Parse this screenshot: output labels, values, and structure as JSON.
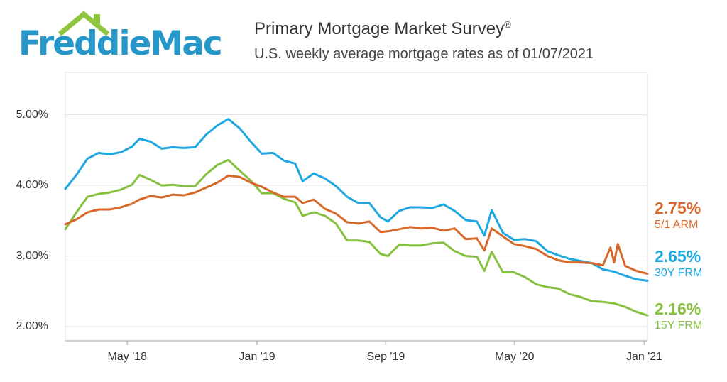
{
  "header": {
    "brand": "FreddieMac",
    "title": "Primary Mortgage Market Survey",
    "title_mark": "®",
    "subtitle": "U.S. weekly average mortgage rates as of 01/07/2021"
  },
  "colors": {
    "brand_blue": "#2597c8",
    "brand_green": "#8ec63f",
    "frm30": "#1ea7e1",
    "frm15": "#86c03f",
    "arm51": "#d8682a",
    "grid": "#e3e3e3",
    "axis": "#bdbdbd"
  },
  "chart_data": {
    "type": "line",
    "title": "Primary Mortgage Market Survey",
    "subtitle": "U.S. weekly average mortgage rates as of 01/07/2021",
    "x_range": [
      "2018-01-04",
      "2021-01-07"
    ],
    "ylim": [
      1.8,
      5.6
    ],
    "y_ticks": [
      2.0,
      3.0,
      4.0,
      5.0
    ],
    "y_tick_labels": [
      "2.00%",
      "3.00%",
      "4.00%",
      "5.00%"
    ],
    "x_ticks": [
      "2018-05-01",
      "2019-01-01",
      "2019-09-01",
      "2020-05-01",
      "2021-01-01"
    ],
    "x_tick_labels": [
      "May '18",
      "Jan '19",
      "Sep '19",
      "May '20",
      "Jan '21"
    ],
    "grid": "horizontal",
    "legend_placement": "right end labels",
    "series": [
      {
        "key": "frm30",
        "name": "30Y FRM",
        "end_label": "2.65%",
        "color": "#1ea7e1",
        "points": [
          [
            "2018-01-04",
            3.95
          ],
          [
            "2018-01-25",
            4.15
          ],
          [
            "2018-02-15",
            4.38
          ],
          [
            "2018-03-08",
            4.46
          ],
          [
            "2018-03-29",
            4.44
          ],
          [
            "2018-04-19",
            4.47
          ],
          [
            "2018-05-10",
            4.55
          ],
          [
            "2018-05-24",
            4.66
          ],
          [
            "2018-06-14",
            4.62
          ],
          [
            "2018-07-05",
            4.52
          ],
          [
            "2018-07-26",
            4.54
          ],
          [
            "2018-08-16",
            4.53
          ],
          [
            "2018-09-06",
            4.54
          ],
          [
            "2018-09-27",
            4.72
          ],
          [
            "2018-10-18",
            4.85
          ],
          [
            "2018-11-08",
            4.94
          ],
          [
            "2018-11-29",
            4.81
          ],
          [
            "2018-12-20",
            4.62
          ],
          [
            "2019-01-10",
            4.45
          ],
          [
            "2019-01-31",
            4.46
          ],
          [
            "2019-02-21",
            4.35
          ],
          [
            "2019-03-14",
            4.31
          ],
          [
            "2019-03-28",
            4.06
          ],
          [
            "2019-04-18",
            4.17
          ],
          [
            "2019-05-09",
            4.1
          ],
          [
            "2019-05-30",
            3.99
          ],
          [
            "2019-06-20",
            3.84
          ],
          [
            "2019-07-11",
            3.75
          ],
          [
            "2019-08-01",
            3.75
          ],
          [
            "2019-08-22",
            3.55
          ],
          [
            "2019-09-05",
            3.49
          ],
          [
            "2019-09-26",
            3.64
          ],
          [
            "2019-10-17",
            3.69
          ],
          [
            "2019-11-07",
            3.69
          ],
          [
            "2019-11-28",
            3.68
          ],
          [
            "2019-12-19",
            3.73
          ],
          [
            "2020-01-09",
            3.64
          ],
          [
            "2020-01-30",
            3.51
          ],
          [
            "2020-02-20",
            3.49
          ],
          [
            "2020-03-05",
            3.29
          ],
          [
            "2020-03-19",
            3.65
          ],
          [
            "2020-04-09",
            3.33
          ],
          [
            "2020-04-30",
            3.23
          ],
          [
            "2020-05-21",
            3.24
          ],
          [
            "2020-06-11",
            3.21
          ],
          [
            "2020-07-02",
            3.07
          ],
          [
            "2020-07-23",
            3.01
          ],
          [
            "2020-08-13",
            2.96
          ],
          [
            "2020-09-03",
            2.93
          ],
          [
            "2020-09-24",
            2.9
          ],
          [
            "2020-10-15",
            2.81
          ],
          [
            "2020-11-05",
            2.78
          ],
          [
            "2020-11-26",
            2.72
          ],
          [
            "2020-12-17",
            2.67
          ],
          [
            "2021-01-07",
            2.65
          ]
        ]
      },
      {
        "key": "frm15",
        "name": "15Y FRM",
        "end_label": "2.16%",
        "color": "#86c03f",
        "points": [
          [
            "2018-01-04",
            3.38
          ],
          [
            "2018-01-25",
            3.62
          ],
          [
            "2018-02-15",
            3.84
          ],
          [
            "2018-03-08",
            3.88
          ],
          [
            "2018-03-29",
            3.9
          ],
          [
            "2018-04-19",
            3.94
          ],
          [
            "2018-05-10",
            4.01
          ],
          [
            "2018-05-24",
            4.15
          ],
          [
            "2018-06-14",
            4.08
          ],
          [
            "2018-07-05",
            4.0
          ],
          [
            "2018-07-26",
            4.01
          ],
          [
            "2018-08-16",
            3.99
          ],
          [
            "2018-09-06",
            3.99
          ],
          [
            "2018-09-27",
            4.16
          ],
          [
            "2018-10-18",
            4.29
          ],
          [
            "2018-11-08",
            4.36
          ],
          [
            "2018-11-29",
            4.21
          ],
          [
            "2018-12-20",
            4.07
          ],
          [
            "2019-01-10",
            3.89
          ],
          [
            "2019-01-31",
            3.89
          ],
          [
            "2019-02-21",
            3.81
          ],
          [
            "2019-03-14",
            3.76
          ],
          [
            "2019-03-28",
            3.57
          ],
          [
            "2019-04-18",
            3.62
          ],
          [
            "2019-05-09",
            3.57
          ],
          [
            "2019-05-30",
            3.46
          ],
          [
            "2019-06-20",
            3.22
          ],
          [
            "2019-07-11",
            3.22
          ],
          [
            "2019-08-01",
            3.2
          ],
          [
            "2019-08-22",
            3.03
          ],
          [
            "2019-09-05",
            3.0
          ],
          [
            "2019-09-26",
            3.16
          ],
          [
            "2019-10-17",
            3.15
          ],
          [
            "2019-11-07",
            3.15
          ],
          [
            "2019-11-28",
            3.18
          ],
          [
            "2019-12-19",
            3.19
          ],
          [
            "2020-01-09",
            3.07
          ],
          [
            "2020-01-30",
            3.0
          ],
          [
            "2020-02-20",
            2.99
          ],
          [
            "2020-03-05",
            2.79
          ],
          [
            "2020-03-19",
            3.06
          ],
          [
            "2020-04-09",
            2.77
          ],
          [
            "2020-04-30",
            2.77
          ],
          [
            "2020-05-21",
            2.7
          ],
          [
            "2020-06-11",
            2.6
          ],
          [
            "2020-07-02",
            2.56
          ],
          [
            "2020-07-23",
            2.54
          ],
          [
            "2020-08-13",
            2.46
          ],
          [
            "2020-09-03",
            2.42
          ],
          [
            "2020-09-24",
            2.36
          ],
          [
            "2020-10-15",
            2.35
          ],
          [
            "2020-11-05",
            2.33
          ],
          [
            "2020-11-26",
            2.28
          ],
          [
            "2020-12-17",
            2.21
          ],
          [
            "2021-01-07",
            2.16
          ]
        ]
      },
      {
        "key": "arm51",
        "name": "5/1 ARM",
        "end_label": "2.75%",
        "color": "#d8682a",
        "points": [
          [
            "2018-01-04",
            3.45
          ],
          [
            "2018-01-25",
            3.52
          ],
          [
            "2018-02-15",
            3.62
          ],
          [
            "2018-03-08",
            3.66
          ],
          [
            "2018-03-29",
            3.66
          ],
          [
            "2018-04-19",
            3.69
          ],
          [
            "2018-05-10",
            3.74
          ],
          [
            "2018-05-24",
            3.8
          ],
          [
            "2018-06-14",
            3.85
          ],
          [
            "2018-07-05",
            3.83
          ],
          [
            "2018-07-26",
            3.87
          ],
          [
            "2018-08-16",
            3.86
          ],
          [
            "2018-09-06",
            3.9
          ],
          [
            "2018-09-27",
            3.97
          ],
          [
            "2018-10-18",
            4.04
          ],
          [
            "2018-11-08",
            4.14
          ],
          [
            "2018-11-29",
            4.12
          ],
          [
            "2018-12-20",
            4.04
          ],
          [
            "2019-01-10",
            3.98
          ],
          [
            "2019-01-31",
            3.9
          ],
          [
            "2019-02-21",
            3.84
          ],
          [
            "2019-03-14",
            3.84
          ],
          [
            "2019-03-28",
            3.75
          ],
          [
            "2019-04-18",
            3.8
          ],
          [
            "2019-05-09",
            3.67
          ],
          [
            "2019-05-30",
            3.6
          ],
          [
            "2019-06-20",
            3.48
          ],
          [
            "2019-07-11",
            3.46
          ],
          [
            "2019-08-01",
            3.49
          ],
          [
            "2019-08-22",
            3.34
          ],
          [
            "2019-09-05",
            3.35
          ],
          [
            "2019-09-26",
            3.38
          ],
          [
            "2019-10-17",
            3.41
          ],
          [
            "2019-11-07",
            3.39
          ],
          [
            "2019-11-28",
            3.4
          ],
          [
            "2019-12-19",
            3.36
          ],
          [
            "2020-01-09",
            3.39
          ],
          [
            "2020-01-30",
            3.24
          ],
          [
            "2020-02-20",
            3.25
          ],
          [
            "2020-03-05",
            3.08
          ],
          [
            "2020-03-19",
            3.39
          ],
          [
            "2020-04-09",
            3.28
          ],
          [
            "2020-04-30",
            3.17
          ],
          [
            "2020-05-21",
            3.14
          ],
          [
            "2020-06-11",
            3.1
          ],
          [
            "2020-07-02",
            3.0
          ],
          [
            "2020-07-23",
            2.94
          ],
          [
            "2020-08-13",
            2.91
          ],
          [
            "2020-09-03",
            2.91
          ],
          [
            "2020-09-24",
            2.9
          ],
          [
            "2020-10-15",
            2.87
          ],
          [
            "2020-10-29",
            3.12
          ],
          [
            "2020-11-05",
            2.91
          ],
          [
            "2020-11-12",
            3.17
          ],
          [
            "2020-11-26",
            2.86
          ],
          [
            "2020-12-17",
            2.79
          ],
          [
            "2021-01-07",
            2.75
          ]
        ]
      }
    ]
  }
}
